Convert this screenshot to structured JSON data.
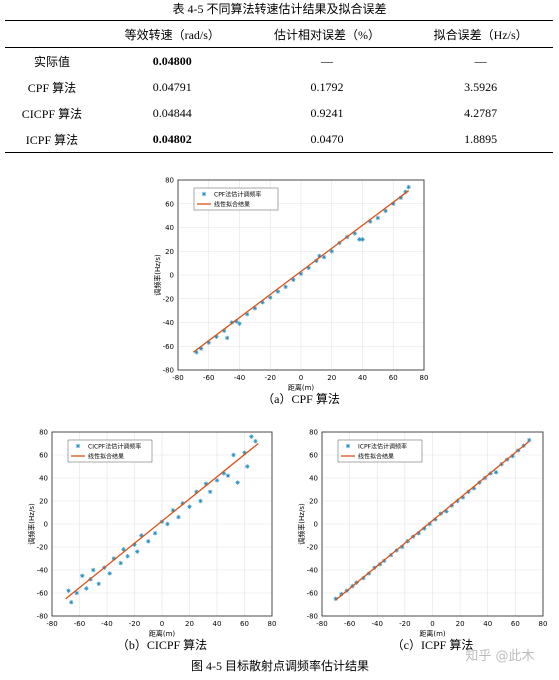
{
  "table": {
    "title": "表 4-5  不同算法转速估计结果及拟合误差",
    "header": [
      "",
      "等效转速（rad/s）",
      "估计相对误差（%）",
      "拟合误差（Hz/s）"
    ],
    "rows": [
      [
        "实际值",
        "0.04800",
        "—",
        "—"
      ],
      [
        "CPF 算法",
        "0.04791",
        "0.1792",
        "3.5926"
      ],
      [
        "CICPF 算法",
        "0.04844",
        "0.9241",
        "4.2787"
      ],
      [
        "ICPF 算法",
        "0.04802",
        "0.0470",
        "1.8895"
      ]
    ]
  },
  "chart_data": [
    {
      "type": "scatter",
      "caption": "（a）CPF 算法",
      "xlabel": "距离(m)",
      "ylabel": "调频率(Hz/s)",
      "xlim": [
        -80,
        80
      ],
      "ylim": [
        -80,
        80
      ],
      "xticks": [
        -80,
        -60,
        -40,
        -20,
        0,
        20,
        40,
        60,
        80
      ],
      "yticks": [
        -80,
        -60,
        -40,
        -20,
        0,
        20,
        40,
        60,
        80
      ],
      "grid": true,
      "series": [
        {
          "name": "CPF法估计调频率",
          "color": "#2b8fc0",
          "mode": "marker",
          "x": [
            -68,
            -65,
            -60,
            -55,
            -50,
            -48,
            -45,
            -42,
            -40,
            -35,
            -30,
            -25,
            -20,
            -15,
            -10,
            -5,
            0,
            5,
            10,
            12,
            15,
            20,
            25,
            30,
            35,
            38,
            40,
            45,
            50,
            55,
            60,
            65,
            68,
            70
          ],
          "y": [
            -65,
            -62,
            -57,
            -52,
            -47,
            -53,
            -40,
            -39,
            -41,
            -33,
            -28,
            -23,
            -19,
            -14,
            -10,
            -4,
            1,
            6,
            12,
            16,
            15,
            20,
            27,
            32,
            35,
            30,
            30,
            45,
            48,
            54,
            60,
            65,
            70,
            74
          ]
        },
        {
          "name": "线性拟合结果",
          "color": "#d95319",
          "mode": "line",
          "x": [
            -70,
            70
          ],
          "y": [
            -65,
            71
          ]
        }
      ]
    },
    {
      "type": "scatter",
      "caption": "（b）CICPF 算法",
      "xlabel": "距离(m)",
      "ylabel": "调频率(Hz/s)",
      "xlim": [
        -80,
        80
      ],
      "ylim": [
        -80,
        80
      ],
      "xticks": [
        -80,
        -60,
        -40,
        -20,
        0,
        20,
        40,
        60,
        80
      ],
      "yticks": [
        -80,
        -60,
        -40,
        -20,
        0,
        20,
        40,
        60,
        80
      ],
      "grid": true,
      "series": [
        {
          "name": "CICPF法估计调频率",
          "color": "#2b8fc0",
          "mode": "marker",
          "x": [
            -68,
            -66,
            -62,
            -58,
            -55,
            -52,
            -50,
            -46,
            -42,
            -38,
            -35,
            -30,
            -28,
            -25,
            -20,
            -18,
            -15,
            -10,
            -5,
            0,
            4,
            8,
            12,
            15,
            20,
            25,
            28,
            32,
            35,
            40,
            45,
            48,
            52,
            55,
            60,
            62,
            65,
            68
          ],
          "y": [
            -58,
            -68,
            -60,
            -45,
            -56,
            -48,
            -40,
            -52,
            -38,
            -43,
            -30,
            -34,
            -22,
            -28,
            -18,
            -24,
            -10,
            -15,
            -8,
            2,
            0,
            12,
            6,
            18,
            15,
            28,
            20,
            35,
            28,
            38,
            44,
            42,
            60,
            36,
            62,
            50,
            76,
            72
          ]
        },
        {
          "name": "线性拟合结果",
          "color": "#d95319",
          "mode": "line",
          "x": [
            -70,
            70
          ],
          "y": [
            -65,
            70
          ]
        }
      ]
    },
    {
      "type": "scatter",
      "caption": "（c）ICPF 算法",
      "xlabel": "距离(m)",
      "ylabel": "调频率(Hz/s)",
      "xlim": [
        -80,
        80
      ],
      "ylim": [
        -80,
        80
      ],
      "xticks": [
        -80,
        -60,
        -40,
        -20,
        0,
        20,
        40,
        60,
        80
      ],
      "yticks": [
        -80,
        -60,
        -40,
        -20,
        0,
        20,
        40,
        60,
        80
      ],
      "grid": true,
      "series": [
        {
          "name": "ICPF法估计调频率",
          "color": "#2b8fc0",
          "mode": "marker",
          "x": [
            -70,
            -66,
            -62,
            -58,
            -55,
            -50,
            -46,
            -42,
            -38,
            -35,
            -30,
            -26,
            -22,
            -18,
            -14,
            -10,
            -6,
            -2,
            2,
            6,
            10,
            14,
            18,
            22,
            26,
            30,
            34,
            38,
            42,
            46,
            50,
            54,
            58,
            62,
            66,
            70
          ],
          "y": [
            -65,
            -61,
            -58,
            -54,
            -51,
            -47,
            -43,
            -38,
            -35,
            -32,
            -27,
            -23,
            -20,
            -15,
            -11,
            -8,
            -4,
            0,
            4,
            9,
            11,
            16,
            20,
            23,
            28,
            31,
            36,
            40,
            44,
            45,
            52,
            56,
            59,
            64,
            68,
            73
          ]
        },
        {
          "name": "线性拟合结果",
          "color": "#d95319",
          "mode": "line",
          "x": [
            -70,
            70
          ],
          "y": [
            -66,
            72
          ]
        }
      ]
    }
  ],
  "figure_caption": "图 4-5  目标散射点调频率估计结果",
  "watermark": "知乎 @此木"
}
